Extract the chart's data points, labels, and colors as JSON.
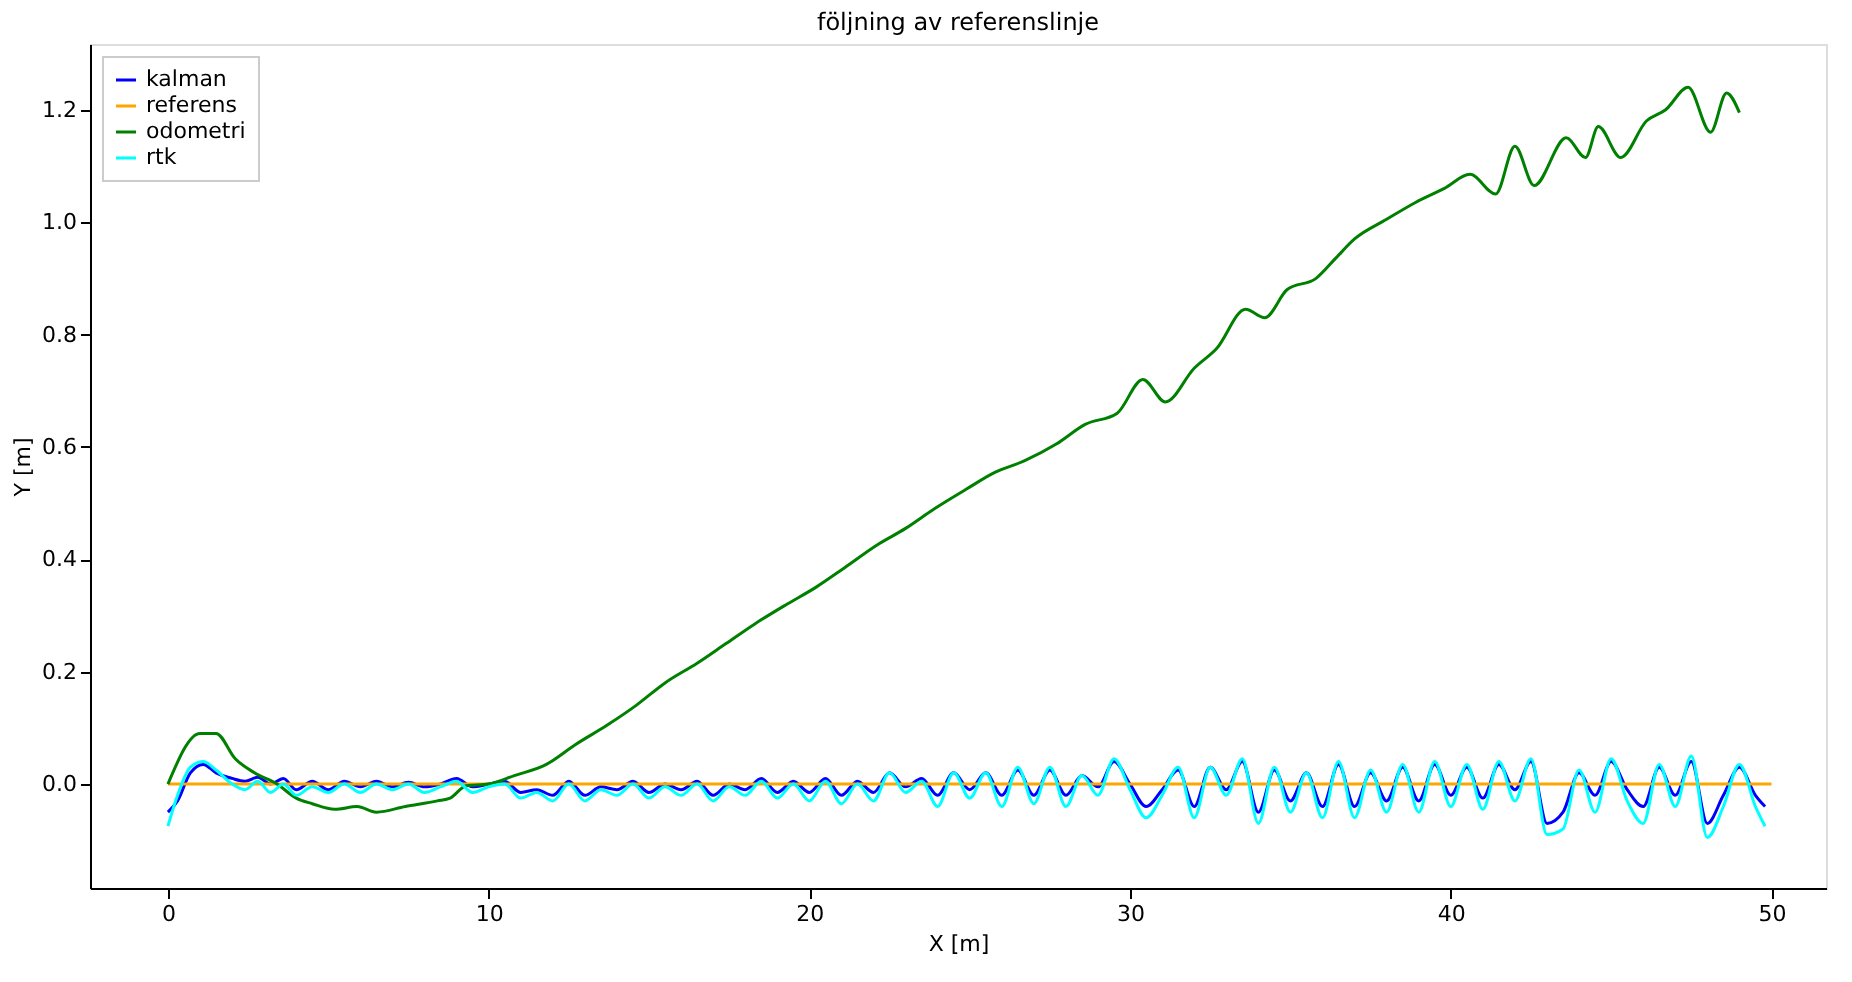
{
  "chart_data": {
    "type": "line",
    "title": "följning av referenslinje",
    "xlabel": "X [m]",
    "ylabel": "Y [m]",
    "xlim": [
      -2.43,
      51.7
    ],
    "ylim": [
      -0.185,
      1.317
    ],
    "xticks": [
      0,
      10,
      20,
      30,
      40,
      50
    ],
    "yticks": [
      {
        "value": 0,
        "label": "0.0"
      },
      {
        "value": 0.2,
        "label": "0.2"
      },
      {
        "value": 0.4,
        "label": "0.4"
      },
      {
        "value": 0.6,
        "label": "0.6"
      },
      {
        "value": 0.8,
        "label": "0.8"
      },
      {
        "value": 1.0,
        "label": "1.0"
      },
      {
        "value": 1.2,
        "label": "1.2"
      }
    ],
    "grid": false,
    "legend": "top left",
    "marker": "none",
    "line_style": "solid",
    "series": [
      {
        "name": "kalman",
        "color": "#0000ff",
        "x": [
          0,
          0.3,
          0.7,
          1.1,
          1.5,
          2.0,
          2.4,
          2.8,
          3.2,
          3.6,
          4.0,
          4.5,
          5.0,
          5.5,
          6.0,
          6.5,
          7.0,
          7.5,
          8.0,
          8.5,
          9.0,
          9.5,
          10.0,
          10.5,
          11.0,
          11.5,
          12.0,
          12.5,
          13.0,
          13.5,
          14.0,
          14.5,
          15.0,
          15.5,
          16.0,
          16.5,
          17.0,
          17.5,
          18.0,
          18.5,
          19.0,
          19.5,
          20.0,
          20.5,
          21.0,
          21.5,
          22.0,
          22.5,
          23.0,
          23.5,
          24.0,
          24.5,
          25.0,
          25.5,
          26.0,
          26.5,
          27.0,
          27.5,
          28.0,
          28.5,
          29.0,
          29.5,
          30.0,
          30.5,
          31.0,
          31.5,
          32.0,
          32.5,
          33.0,
          33.5,
          34.0,
          34.5,
          35.0,
          35.5,
          36.0,
          36.5,
          37.0,
          37.5,
          38.0,
          38.5,
          39.0,
          39.5,
          40.0,
          40.5,
          41.0,
          41.5,
          42.0,
          42.5,
          43.0,
          43.5,
          44.0,
          44.5,
          45.0,
          45.5,
          46.0,
          46.5,
          47.0,
          47.5,
          48.0,
          48.5,
          49.0,
          49.5,
          49.8
        ],
        "values": [
          -0.05,
          -0.03,
          0.02,
          0.035,
          0.02,
          0.01,
          0.005,
          0.012,
          0.0,
          0.01,
          -0.01,
          0.005,
          -0.01,
          0.005,
          -0.005,
          0.005,
          -0.005,
          0.003,
          -0.005,
          0.0,
          0.01,
          -0.005,
          0.0,
          0.005,
          -0.015,
          -0.01,
          -0.02,
          0.005,
          -0.02,
          -0.005,
          -0.01,
          0.005,
          -0.015,
          0.0,
          -0.01,
          0.005,
          -0.02,
          0.0,
          -0.01,
          0.01,
          -0.015,
          0.005,
          -0.015,
          0.01,
          -0.02,
          0.005,
          -0.015,
          0.02,
          -0.005,
          0.01,
          -0.02,
          0.02,
          -0.01,
          0.02,
          -0.02,
          0.025,
          -0.02,
          0.025,
          -0.02,
          0.015,
          -0.005,
          0.04,
          0.0,
          -0.04,
          -0.01,
          0.025,
          -0.04,
          0.03,
          -0.01,
          0.04,
          -0.05,
          0.025,
          -0.03,
          0.02,
          -0.04,
          0.035,
          -0.04,
          0.02,
          -0.03,
          0.03,
          -0.03,
          0.035,
          -0.02,
          0.03,
          -0.025,
          0.035,
          -0.01,
          0.04,
          -0.07,
          -0.05,
          0.02,
          -0.02,
          0.04,
          -0.01,
          -0.04,
          0.03,
          -0.02,
          0.04,
          -0.07,
          -0.02,
          0.03,
          -0.02,
          -0.04
        ]
      },
      {
        "name": "referens",
        "color": "#ffa500",
        "x": [
          0,
          50
        ],
        "values": [
          0,
          0
        ]
      },
      {
        "name": "odometri",
        "color": "#008000",
        "x": [
          0,
          1.0,
          1.5,
          2.1,
          2.7,
          3.4,
          4.0,
          4.5,
          5.2,
          5.9,
          6.5,
          7.4,
          8.4,
          8.8,
          9.3,
          10,
          10.8,
          11.8,
          12.7,
          13.7,
          14.6,
          15.5,
          16.5,
          17.4,
          18.3,
          19.3,
          20.2,
          21.1,
          22.1,
          23.0,
          23.9,
          24.9,
          25.8,
          26.7,
          27.7,
          28.6,
          29.6,
          30.4,
          31.1,
          32.0,
          32.7,
          33.6,
          34.2,
          34.9,
          35.8,
          36.4,
          37.0,
          38.0,
          38.9,
          39.8,
          40.6,
          41.4,
          42.0,
          42.6,
          43.6,
          44.2,
          44.6,
          45.3,
          46.1,
          46.7,
          47.4,
          48.1,
          48.6,
          49.0
        ],
        "values": [
          0,
          0.09,
          0.09,
          0.045,
          0.02,
          0.0,
          -0.025,
          -0.035,
          -0.045,
          -0.04,
          -0.05,
          -0.04,
          -0.03,
          -0.025,
          -0.003,
          0,
          0.015,
          0.035,
          0.07,
          0.105,
          0.14,
          0.18,
          0.215,
          0.25,
          0.285,
          0.32,
          0.35,
          0.385,
          0.425,
          0.455,
          0.49,
          0.525,
          0.555,
          0.575,
          0.605,
          0.64,
          0.66,
          0.72,
          0.68,
          0.74,
          0.775,
          0.845,
          0.83,
          0.88,
          0.9,
          0.935,
          0.97,
          1.005,
          1.035,
          1.06,
          1.085,
          1.05,
          1.135,
          1.065,
          1.15,
          1.115,
          1.17,
          1.115,
          1.18,
          1.2,
          1.24,
          1.16,
          1.23,
          1.195
        ]
      },
      {
        "name": "rtk",
        "color": "#00ffff",
        "x": [
          0,
          0.3,
          0.7,
          1.1,
          1.5,
          2.0,
          2.4,
          2.8,
          3.2,
          3.6,
          4.0,
          4.5,
          5.0,
          5.5,
          6.0,
          6.5,
          7.0,
          7.5,
          8.0,
          8.5,
          9.0,
          9.5,
          10.0,
          10.5,
          11.0,
          11.5,
          12.0,
          12.5,
          13.0,
          13.5,
          14.0,
          14.5,
          15.0,
          15.5,
          16.0,
          16.5,
          17.0,
          17.5,
          18.0,
          18.5,
          19.0,
          19.5,
          20.0,
          20.5,
          21.0,
          21.5,
          22.0,
          22.5,
          23.0,
          23.5,
          24.0,
          24.5,
          25.0,
          25.5,
          26.0,
          26.5,
          27.0,
          27.5,
          28.0,
          28.5,
          29.0,
          29.5,
          30.0,
          30.5,
          31.0,
          31.5,
          32.0,
          32.5,
          33.0,
          33.5,
          34.0,
          34.5,
          35.0,
          35.5,
          36.0,
          36.5,
          37.0,
          37.5,
          38.0,
          38.5,
          39.0,
          39.5,
          40.0,
          40.5,
          41.0,
          41.5,
          42.0,
          42.5,
          43.0,
          43.5,
          44.0,
          44.5,
          45.0,
          45.5,
          46.0,
          46.5,
          47.0,
          47.5,
          48.0,
          48.5,
          49.0,
          49.5,
          49.8
        ],
        "values": [
          -0.075,
          -0.02,
          0.03,
          0.04,
          0.025,
          0.0,
          -0.01,
          0.005,
          -0.015,
          0.0,
          -0.02,
          -0.005,
          -0.015,
          0.0,
          -0.015,
          0.0,
          -0.01,
          0.0,
          -0.015,
          -0.005,
          0.005,
          -0.015,
          -0.005,
          0.0,
          -0.025,
          -0.015,
          -0.03,
          0.0,
          -0.03,
          -0.01,
          -0.02,
          0.0,
          -0.025,
          -0.005,
          -0.02,
          0.0,
          -0.03,
          -0.005,
          -0.02,
          0.005,
          -0.025,
          0.0,
          -0.03,
          0.005,
          -0.035,
          0.0,
          -0.03,
          0.02,
          -0.015,
          0.005,
          -0.04,
          0.02,
          -0.025,
          0.02,
          -0.04,
          0.03,
          -0.035,
          0.03,
          -0.04,
          0.015,
          -0.02,
          0.045,
          -0.01,
          -0.06,
          -0.02,
          0.03,
          -0.06,
          0.03,
          -0.02,
          0.045,
          -0.07,
          0.03,
          -0.05,
          0.02,
          -0.06,
          0.04,
          -0.06,
          0.025,
          -0.05,
          0.035,
          -0.05,
          0.04,
          -0.04,
          0.035,
          -0.045,
          0.04,
          -0.03,
          0.045,
          -0.09,
          -0.08,
          0.025,
          -0.05,
          0.045,
          -0.03,
          -0.07,
          0.035,
          -0.04,
          0.05,
          -0.095,
          -0.04,
          0.035,
          -0.04,
          -0.075
        ]
      }
    ]
  }
}
